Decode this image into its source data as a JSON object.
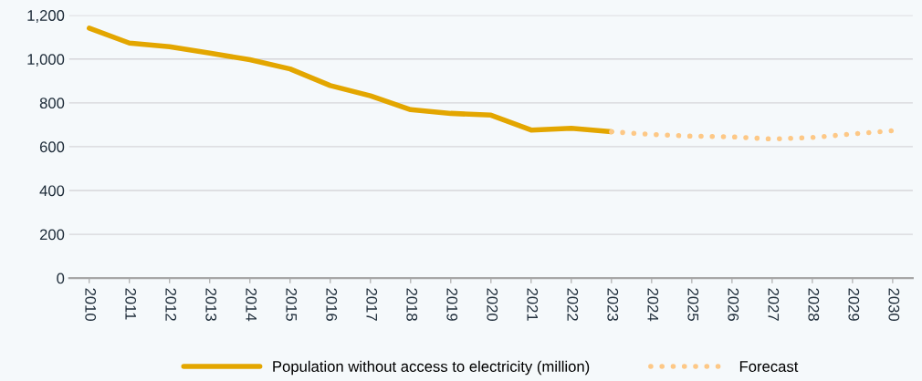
{
  "chart_data": {
    "type": "line",
    "categories": [
      "2010",
      "2011",
      "2012",
      "2013",
      "2014",
      "2015",
      "2016",
      "2017",
      "2018",
      "2019",
      "2020",
      "2021",
      "2022",
      "2023",
      "2024",
      "2025",
      "2026",
      "2027",
      "2028",
      "2029",
      "2030"
    ],
    "series": [
      {
        "name": "Population without access to electricity (million)",
        "color": "#e3a600",
        "line_style": "solid",
        "values": [
          1141,
          1073,
          1056,
          1027,
          997,
          955,
          879,
          832,
          769,
          752,
          744,
          676,
          684,
          668,
          null,
          null,
          null,
          null,
          null,
          null,
          null
        ]
      },
      {
        "name": "Forecast",
        "color": "#fdc886",
        "line_style": "dotted",
        "values": [
          null,
          null,
          null,
          null,
          null,
          null,
          null,
          null,
          null,
          null,
          null,
          null,
          null,
          668,
          656,
          648,
          645,
          635,
          642,
          658,
          673
        ]
      }
    ],
    "ylim": [
      0,
      1200
    ],
    "yticks": [
      {
        "value": 0,
        "label": "0"
      },
      {
        "value": 200,
        "label": "200"
      },
      {
        "value": 400,
        "label": "400"
      },
      {
        "value": 600,
        "label": "600"
      },
      {
        "value": 800,
        "label": "800"
      },
      {
        "value": 1000,
        "label": "1,000"
      },
      {
        "value": 1200,
        "label": "1,200"
      }
    ],
    "grid": "y",
    "legend": "bottom"
  }
}
